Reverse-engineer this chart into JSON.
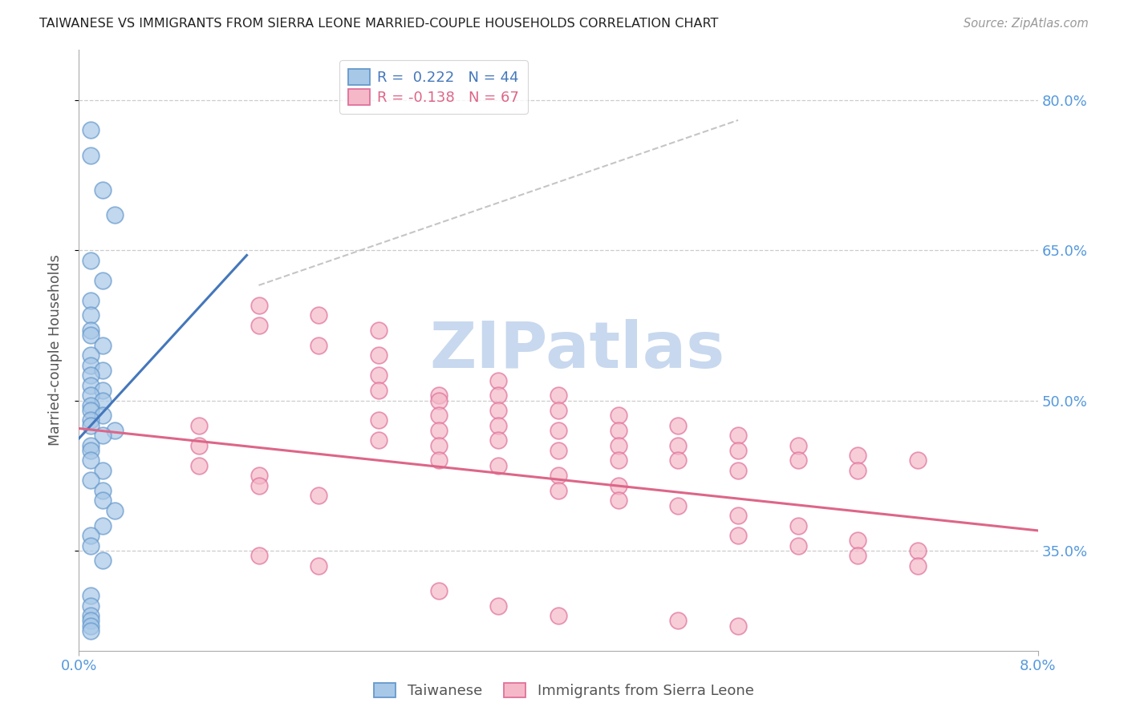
{
  "title": "TAIWANESE VS IMMIGRANTS FROM SIERRA LEONE MARRIED-COUPLE HOUSEHOLDS CORRELATION CHART",
  "source": "Source: ZipAtlas.com",
  "ylabel": "Married-couple Households",
  "yticks": [
    0.35,
    0.5,
    0.65,
    0.8
  ],
  "ytick_labels": [
    "35.0%",
    "50.0%",
    "65.0%",
    "80.0%"
  ],
  "xlim": [
    0.0,
    0.08
  ],
  "ylim": [
    0.25,
    0.85
  ],
  "legend1_label": "R =  0.222   N = 44",
  "legend2_label": "R = -0.138   N = 67",
  "color_blue_fill": "#a8c8e8",
  "color_pink_fill": "#f4b8c8",
  "color_blue_edge": "#6699cc",
  "color_pink_edge": "#e0709a",
  "color_blue_line": "#4477bb",
  "color_pink_line": "#dd6688",
  "color_gray_dash": "#bbbbbb",
  "color_axis_labels": "#5599dd",
  "color_ytick_labels": "#5599dd",
  "color_grid": "#cccccc",
  "color_bg": "#ffffff",
  "watermark_text": "ZIPatlas",
  "watermark_color": "#c8d8ee",
  "blue_x": [
    0.001,
    0.001,
    0.002,
    0.003,
    0.001,
    0.002,
    0.001,
    0.001,
    0.001,
    0.001,
    0.002,
    0.001,
    0.001,
    0.002,
    0.001,
    0.001,
    0.002,
    0.001,
    0.002,
    0.001,
    0.001,
    0.002,
    0.001,
    0.001,
    0.003,
    0.002,
    0.001,
    0.001,
    0.001,
    0.002,
    0.001,
    0.002,
    0.002,
    0.003,
    0.002,
    0.001,
    0.001,
    0.002,
    0.001,
    0.001,
    0.001,
    0.001,
    0.001,
    0.001
  ],
  "blue_y": [
    0.77,
    0.745,
    0.71,
    0.685,
    0.64,
    0.62,
    0.6,
    0.585,
    0.57,
    0.565,
    0.555,
    0.545,
    0.535,
    0.53,
    0.525,
    0.515,
    0.51,
    0.505,
    0.5,
    0.495,
    0.49,
    0.485,
    0.48,
    0.475,
    0.47,
    0.465,
    0.455,
    0.45,
    0.44,
    0.43,
    0.42,
    0.41,
    0.4,
    0.39,
    0.375,
    0.365,
    0.355,
    0.34,
    0.305,
    0.295,
    0.285,
    0.28,
    0.275,
    0.27
  ],
  "pink_x": [
    0.015,
    0.015,
    0.02,
    0.02,
    0.025,
    0.025,
    0.025,
    0.025,
    0.03,
    0.03,
    0.03,
    0.03,
    0.035,
    0.035,
    0.035,
    0.035,
    0.035,
    0.04,
    0.04,
    0.04,
    0.04,
    0.045,
    0.045,
    0.045,
    0.045,
    0.05,
    0.05,
    0.05,
    0.055,
    0.055,
    0.055,
    0.06,
    0.06,
    0.065,
    0.065,
    0.07,
    0.01,
    0.01,
    0.01,
    0.015,
    0.015,
    0.02,
    0.025,
    0.025,
    0.03,
    0.03,
    0.035,
    0.04,
    0.04,
    0.045,
    0.045,
    0.05,
    0.055,
    0.06,
    0.065,
    0.07,
    0.015,
    0.02,
    0.03,
    0.035,
    0.04,
    0.05,
    0.055,
    0.055,
    0.06,
    0.065,
    0.07
  ],
  "pink_y": [
    0.595,
    0.575,
    0.585,
    0.555,
    0.57,
    0.545,
    0.525,
    0.51,
    0.505,
    0.5,
    0.485,
    0.47,
    0.52,
    0.505,
    0.49,
    0.475,
    0.46,
    0.505,
    0.49,
    0.47,
    0.45,
    0.485,
    0.47,
    0.455,
    0.44,
    0.475,
    0.455,
    0.44,
    0.465,
    0.45,
    0.43,
    0.455,
    0.44,
    0.445,
    0.43,
    0.44,
    0.475,
    0.455,
    0.435,
    0.425,
    0.415,
    0.405,
    0.48,
    0.46,
    0.455,
    0.44,
    0.435,
    0.425,
    0.41,
    0.415,
    0.4,
    0.395,
    0.385,
    0.375,
    0.36,
    0.35,
    0.345,
    0.335,
    0.31,
    0.295,
    0.285,
    0.28,
    0.275,
    0.365,
    0.355,
    0.345,
    0.335
  ],
  "blue_line_x": [
    0.0,
    0.014
  ],
  "blue_line_y": [
    0.462,
    0.645
  ],
  "pink_line_x": [
    0.0,
    0.08
  ],
  "pink_line_y": [
    0.472,
    0.37
  ],
  "ref_line_x": [
    0.015,
    0.055
  ],
  "ref_line_y": [
    0.615,
    0.78
  ],
  "xtick_positions": [
    0.0,
    0.08
  ],
  "xtick_labels": [
    "0.0%",
    "8.0%"
  ]
}
